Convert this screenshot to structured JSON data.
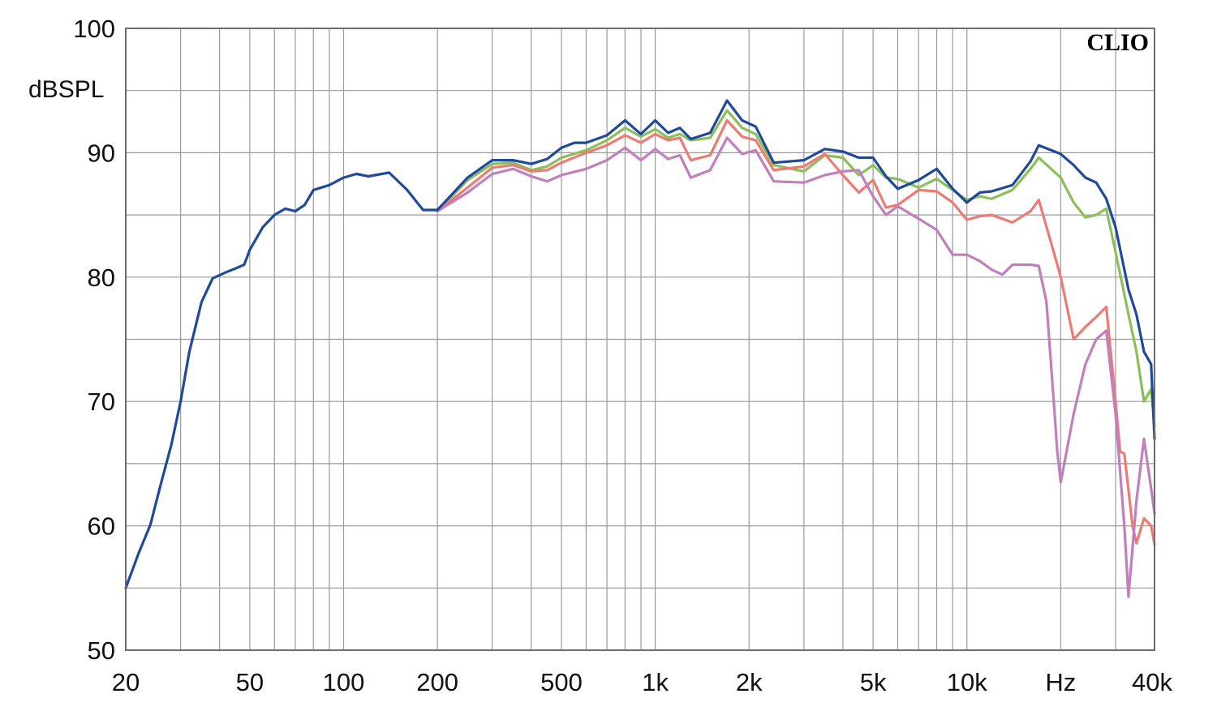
{
  "chart_data": {
    "type": "line",
    "brand": "CLIO",
    "ylabel": "dBSPL",
    "xunit": "Hz",
    "xscale": "log",
    "xlim": [
      20,
      40000
    ],
    "ylim": [
      50,
      100
    ],
    "grid": true,
    "y_ticks": [
      {
        "value": 50,
        "label": "50"
      },
      {
        "value": 60,
        "label": "60"
      },
      {
        "value": 70,
        "label": "70"
      },
      {
        "value": 80,
        "label": "80"
      },
      {
        "value": 90,
        "label": "90"
      },
      {
        "value": 100,
        "label": "100"
      }
    ],
    "x_ticks": [
      {
        "value": 20,
        "label": "20"
      },
      {
        "value": 50,
        "label": "50"
      },
      {
        "value": 100,
        "label": "100"
      },
      {
        "value": 200,
        "label": "200"
      },
      {
        "value": 500,
        "label": "500"
      },
      {
        "value": 1000,
        "label": "1k"
      },
      {
        "value": 2000,
        "label": "2k"
      },
      {
        "value": 5000,
        "label": "5k"
      },
      {
        "value": 10000,
        "label": "10k"
      },
      {
        "value": 20000,
        "label": "Hz"
      },
      {
        "value": 40000,
        "label": "40k"
      }
    ],
    "series": [
      {
        "color": "#8cbf5a",
        "points": [
          [
            200,
            85.3
          ],
          [
            250,
            87.8
          ],
          [
            300,
            89.1
          ],
          [
            350,
            89.2
          ],
          [
            400,
            88.6
          ],
          [
            450,
            88.9
          ],
          [
            500,
            89.6
          ],
          [
            600,
            90.2
          ],
          [
            700,
            91.0
          ],
          [
            800,
            92.0
          ],
          [
            900,
            91.3
          ],
          [
            1000,
            91.9
          ],
          [
            1100,
            91.2
          ],
          [
            1200,
            91.5
          ],
          [
            1300,
            91.0
          ],
          [
            1500,
            91.2
          ],
          [
            1700,
            93.4
          ],
          [
            1900,
            92.0
          ],
          [
            2100,
            91.5
          ],
          [
            2400,
            89.0
          ],
          [
            3000,
            88.5
          ],
          [
            3500,
            89.8
          ],
          [
            4000,
            89.6
          ],
          [
            4500,
            88.2
          ],
          [
            5000,
            89.0
          ],
          [
            5500,
            88.0
          ],
          [
            6000,
            87.9
          ],
          [
            7000,
            87.2
          ],
          [
            8000,
            87.9
          ],
          [
            9000,
            87.0
          ],
          [
            10000,
            86.2
          ],
          [
            11000,
            86.5
          ],
          [
            12000,
            86.3
          ],
          [
            14000,
            87.0
          ],
          [
            16000,
            88.7
          ],
          [
            17000,
            89.6
          ],
          [
            20000,
            88.0
          ],
          [
            22000,
            86.0
          ],
          [
            24000,
            84.8
          ],
          [
            26000,
            85.0
          ],
          [
            28000,
            85.5
          ],
          [
            30000,
            82.0
          ],
          [
            33000,
            77.0
          ],
          [
            35000,
            74.0
          ],
          [
            37000,
            70.0
          ],
          [
            39000,
            71.0
          ],
          [
            40000,
            68.0
          ]
        ]
      },
      {
        "color": "#ee7a74",
        "points": [
          [
            200,
            85.3
          ],
          [
            250,
            87.2
          ],
          [
            300,
            88.8
          ],
          [
            350,
            89.0
          ],
          [
            400,
            88.5
          ],
          [
            450,
            88.6
          ],
          [
            500,
            89.2
          ],
          [
            600,
            90.0
          ],
          [
            700,
            90.6
          ],
          [
            800,
            91.4
          ],
          [
            900,
            90.8
          ],
          [
            1000,
            91.5
          ],
          [
            1100,
            91.0
          ],
          [
            1200,
            91.2
          ],
          [
            1300,
            89.4
          ],
          [
            1500,
            89.8
          ],
          [
            1700,
            92.6
          ],
          [
            1900,
            91.3
          ],
          [
            2100,
            91.0
          ],
          [
            2400,
            88.6
          ],
          [
            3000,
            88.9
          ],
          [
            3500,
            89.9
          ],
          [
            4000,
            88.2
          ],
          [
            4500,
            86.8
          ],
          [
            5000,
            87.8
          ],
          [
            5500,
            85.6
          ],
          [
            6000,
            85.8
          ],
          [
            7000,
            87.0
          ],
          [
            8000,
            86.9
          ],
          [
            9000,
            86.0
          ],
          [
            10000,
            84.6
          ],
          [
            11000,
            84.9
          ],
          [
            12000,
            85.0
          ],
          [
            14000,
            84.4
          ],
          [
            16000,
            85.3
          ],
          [
            17000,
            86.2
          ],
          [
            19000,
            82.0
          ],
          [
            20000,
            80.0
          ],
          [
            22000,
            75.0
          ],
          [
            24000,
            76.0
          ],
          [
            26000,
            76.8
          ],
          [
            28000,
            77.6
          ],
          [
            30000,
            70.0
          ],
          [
            31000,
            66.0
          ],
          [
            32000,
            65.8
          ],
          [
            34000,
            60.0
          ],
          [
            35000,
            58.6
          ],
          [
            37000,
            60.6
          ],
          [
            39000,
            60.0
          ],
          [
            40000,
            58.5
          ]
        ]
      },
      {
        "color": "#c17fbe",
        "points": [
          [
            200,
            85.3
          ],
          [
            250,
            86.8
          ],
          [
            300,
            88.3
          ],
          [
            350,
            88.7
          ],
          [
            400,
            88.1
          ],
          [
            450,
            87.7
          ],
          [
            500,
            88.2
          ],
          [
            600,
            88.7
          ],
          [
            700,
            89.4
          ],
          [
            800,
            90.4
          ],
          [
            900,
            89.4
          ],
          [
            1000,
            90.3
          ],
          [
            1100,
            89.5
          ],
          [
            1200,
            89.8
          ],
          [
            1300,
            88.0
          ],
          [
            1500,
            88.6
          ],
          [
            1700,
            91.2
          ],
          [
            1900,
            89.9
          ],
          [
            2100,
            90.2
          ],
          [
            2400,
            87.7
          ],
          [
            3000,
            87.6
          ],
          [
            3500,
            88.2
          ],
          [
            4000,
            88.5
          ],
          [
            4500,
            88.6
          ],
          [
            5000,
            86.5
          ],
          [
            5500,
            85.0
          ],
          [
            6000,
            85.7
          ],
          [
            7000,
            84.7
          ],
          [
            8000,
            83.8
          ],
          [
            9000,
            81.8
          ],
          [
            10000,
            81.8
          ],
          [
            11000,
            81.3
          ],
          [
            12000,
            80.6
          ],
          [
            13000,
            80.2
          ],
          [
            14000,
            81.0
          ],
          [
            16000,
            81.0
          ],
          [
            17000,
            80.9
          ],
          [
            18000,
            78.0
          ],
          [
            19000,
            70.0
          ],
          [
            19500,
            66.0
          ],
          [
            20000,
            63.5
          ],
          [
            22000,
            69.0
          ],
          [
            24000,
            73.0
          ],
          [
            26000,
            75.0
          ],
          [
            28000,
            75.7
          ],
          [
            30000,
            69.0
          ],
          [
            32000,
            60.0
          ],
          [
            33000,
            54.3
          ],
          [
            35000,
            62.0
          ],
          [
            37000,
            67.0
          ],
          [
            39000,
            63.0
          ],
          [
            40000,
            61.0
          ]
        ]
      },
      {
        "color": "#1f4a9c",
        "points": [
          [
            20,
            55.0
          ],
          [
            22,
            57.8
          ],
          [
            24,
            60.1
          ],
          [
            26,
            63.5
          ],
          [
            28,
            66.5
          ],
          [
            30,
            70.0
          ],
          [
            32,
            74.0
          ],
          [
            35,
            78.0
          ],
          [
            38,
            79.9
          ],
          [
            42,
            80.4
          ],
          [
            45,
            80.7
          ],
          [
            48,
            81.0
          ],
          [
            50,
            82.2
          ],
          [
            55,
            84.0
          ],
          [
            60,
            85.0
          ],
          [
            65,
            85.5
          ],
          [
            70,
            85.3
          ],
          [
            75,
            85.8
          ],
          [
            80,
            87.0
          ],
          [
            90,
            87.4
          ],
          [
            100,
            88.0
          ],
          [
            110,
            88.3
          ],
          [
            120,
            88.1
          ],
          [
            140,
            88.4
          ],
          [
            160,
            87.0
          ],
          [
            180,
            85.4
          ],
          [
            200,
            85.4
          ],
          [
            250,
            88.0
          ],
          [
            300,
            89.4
          ],
          [
            350,
            89.4
          ],
          [
            400,
            89.1
          ],
          [
            450,
            89.5
          ],
          [
            500,
            90.4
          ],
          [
            550,
            90.8
          ],
          [
            600,
            90.8
          ],
          [
            700,
            91.4
          ],
          [
            800,
            92.6
          ],
          [
            900,
            91.5
          ],
          [
            1000,
            92.6
          ],
          [
            1100,
            91.6
          ],
          [
            1200,
            92.0
          ],
          [
            1300,
            91.1
          ],
          [
            1500,
            91.6
          ],
          [
            1700,
            94.2
          ],
          [
            1900,
            92.6
          ],
          [
            2100,
            92.1
          ],
          [
            2400,
            89.2
          ],
          [
            3000,
            89.4
          ],
          [
            3500,
            90.3
          ],
          [
            4000,
            90.1
          ],
          [
            4500,
            89.6
          ],
          [
            5000,
            89.6
          ],
          [
            5500,
            88.1
          ],
          [
            6000,
            87.1
          ],
          [
            7000,
            87.8
          ],
          [
            8000,
            88.7
          ],
          [
            9000,
            87.1
          ],
          [
            10000,
            86.0
          ],
          [
            11000,
            86.8
          ],
          [
            12000,
            86.9
          ],
          [
            14000,
            87.4
          ],
          [
            16000,
            89.3
          ],
          [
            17000,
            90.6
          ],
          [
            20000,
            89.9
          ],
          [
            22000,
            89.0
          ],
          [
            24000,
            88.0
          ],
          [
            26000,
            87.6
          ],
          [
            28000,
            86.3
          ],
          [
            30000,
            84.0
          ],
          [
            33000,
            79.0
          ],
          [
            35000,
            77.0
          ],
          [
            37000,
            74.0
          ],
          [
            39000,
            73.0
          ],
          [
            40000,
            67.0
          ]
        ]
      }
    ]
  }
}
